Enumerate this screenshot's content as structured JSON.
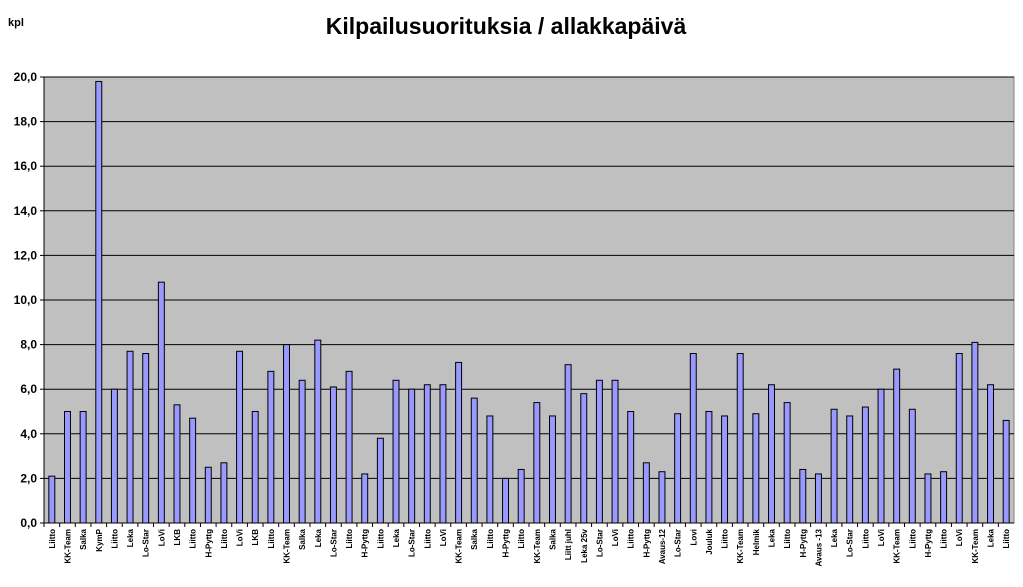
{
  "chart_data": {
    "type": "bar",
    "title": "Kilpailusuorituksia / allakkapäivä",
    "ylabel": "kpl",
    "xlabel": "",
    "ylim": [
      0,
      20
    ],
    "ytick_step": 2,
    "ytick_labels": [
      "0,0",
      "2,0",
      "4,0",
      "6,0",
      "8,0",
      "10,0",
      "12,0",
      "14,0",
      "16,0",
      "18,0",
      "20,0"
    ],
    "grid": true,
    "legend": "none",
    "colors": {
      "plot_background": "#c0c0c0",
      "bar_fill": "#9999ff",
      "bar_stroke": "#000000",
      "grid": "#000000"
    },
    "categories": [
      "Liitto",
      "KK-Team",
      "Salka",
      "KymP",
      "Liitto",
      "Leka",
      "Lo-Star",
      "LoVi",
      "LKB",
      "Liitto",
      "H-Pyttg",
      "Liitto",
      "LoVi",
      "LKB",
      "Liitto",
      "KK-Team",
      "Salka",
      "Leka",
      "Lo-Star",
      "Liitto",
      "H-Pyttg",
      "Liitto",
      "Leka",
      "Lo-Star",
      "Liitto",
      "LoVi",
      "KK-Team",
      "Salka",
      "Liitto",
      "H-Pyttg",
      "Liitto",
      "KK-Team",
      "Salka",
      "Liitt juhl",
      "Leka 25v",
      "Lo-Star",
      "LoVi",
      "Liitto",
      "H-Pyttg",
      "Avaus-12",
      "Lo-Star",
      "Lovi",
      "Jouluk",
      "Liitto",
      "KK-Team",
      "Helmik",
      "Leka",
      "Liitto",
      "H-Pyttg",
      "Avaus -13",
      "Leka",
      "Lo-Star",
      "Liitto",
      "LoVi",
      "KK-Team",
      "Liitto",
      "H-Pyttg",
      "Liitto",
      "LoVi",
      "KK-Team",
      "Leka",
      "Liitto"
    ],
    "values": [
      2.1,
      5.0,
      5.0,
      19.8,
      6.0,
      7.7,
      7.6,
      10.8,
      5.3,
      4.7,
      2.5,
      2.7,
      7.7,
      5.0,
      6.8,
      8.0,
      6.4,
      8.2,
      6.1,
      6.8,
      2.2,
      3.8,
      6.4,
      6.0,
      6.2,
      6.2,
      7.2,
      5.6,
      4.8,
      2.0,
      2.4,
      5.4,
      4.8,
      7.1,
      5.8,
      6.4,
      6.4,
      5.0,
      2.7,
      2.3,
      4.9,
      7.6,
      5.0,
      4.8,
      7.6,
      4.9,
      6.2,
      5.4,
      2.4,
      2.2,
      5.1,
      4.8,
      5.2,
      6.0,
      6.9,
      5.1,
      2.2,
      2.3,
      7.6,
      8.1,
      6.2,
      4.6
    ]
  }
}
